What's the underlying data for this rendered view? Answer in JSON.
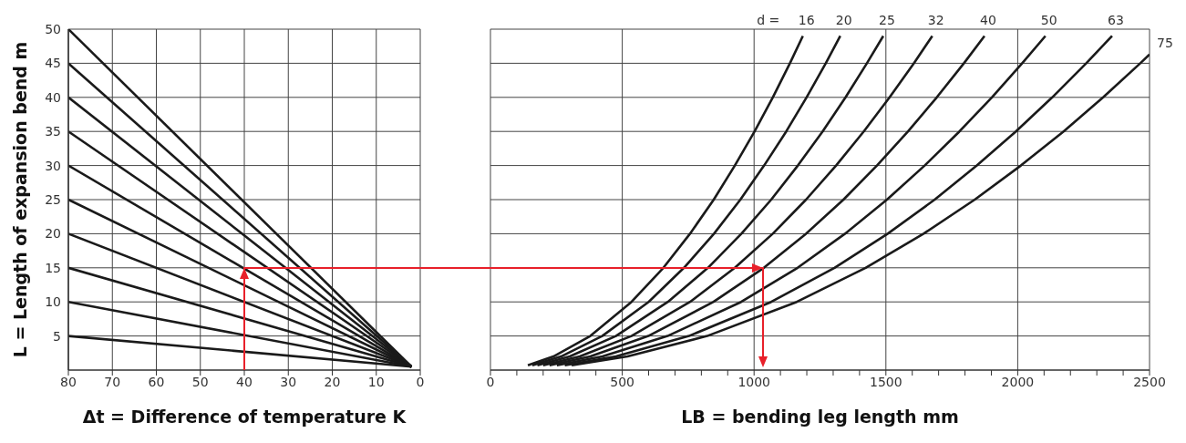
{
  "chart_data": [
    {
      "type": "line",
      "ylabel": "L = Length of expansion bend   m",
      "xlabel": "Δt = Difference of temperature K",
      "xlim": [
        80,
        0
      ],
      "xticks": [
        80,
        70,
        60,
        50,
        40,
        30,
        20,
        10,
        0
      ],
      "ylim": [
        0,
        50
      ],
      "yticks": [
        5,
        10,
        15,
        20,
        25,
        30,
        35,
        40,
        45,
        50
      ],
      "grid": true,
      "series": [
        {
          "color": "#1a1a1a",
          "x": [
            80,
            2
          ],
          "values": [
            5,
            0.5
          ]
        },
        {
          "color": "#1a1a1a",
          "x": [
            80,
            2
          ],
          "values": [
            10,
            0.5
          ]
        },
        {
          "color": "#1a1a1a",
          "x": [
            80,
            2
          ],
          "values": [
            15,
            0.5
          ]
        },
        {
          "color": "#1a1a1a",
          "x": [
            80,
            2
          ],
          "values": [
            20,
            0.5
          ]
        },
        {
          "color": "#1a1a1a",
          "x": [
            80,
            2
          ],
          "values": [
            25,
            0.5
          ]
        },
        {
          "color": "#1a1a1a",
          "x": [
            80,
            2
          ],
          "values": [
            30,
            0.5
          ]
        },
        {
          "color": "#1a1a1a",
          "x": [
            80,
            2
          ],
          "values": [
            35,
            0.5
          ]
        },
        {
          "color": "#1a1a1a",
          "x": [
            80,
            2
          ],
          "values": [
            40,
            0.5
          ]
        },
        {
          "color": "#1a1a1a",
          "x": [
            80,
            2
          ],
          "values": [
            45,
            0.5
          ]
        },
        {
          "color": "#1a1a1a",
          "x": [
            80,
            2
          ],
          "values": [
            50,
            0.5
          ]
        }
      ]
    },
    {
      "type": "line",
      "xlabel": "LB = bending leg length   mm",
      "legend_title": "d =",
      "xlim": [
        0,
        2500
      ],
      "xticks": [
        0,
        {
          "value": 100,
          "label": null
        },
        {
          "value": 200,
          "label": null
        },
        {
          "value": 300,
          "label": null
        },
        {
          "value": 400,
          "label": null
        },
        500,
        {
          "value": 600,
          "label": null
        },
        {
          "value": 700,
          "label": null
        },
        {
          "value": 800,
          "label": null
        },
        {
          "value": 900,
          "label": null
        },
        1000,
        {
          "value": 1100,
          "label": null
        },
        {
          "value": 1200,
          "label": null
        },
        {
          "value": 1300,
          "label": null
        },
        {
          "value": 1400,
          "label": null
        },
        1500,
        {
          "value": 1600,
          "label": null
        },
        {
          "value": 1700,
          "label": null
        },
        {
          "value": 1800,
          "label": null
        },
        {
          "value": 1900,
          "label": null
        },
        2000,
        {
          "value": 2100,
          "label": null
        },
        {
          "value": 2200,
          "label": null
        },
        {
          "value": 2300,
          "label": null
        },
        {
          "value": 2400,
          "label": null
        },
        2500
      ],
      "ylim": [
        0,
        50
      ],
      "yticks": [
        5,
        10,
        15,
        20,
        25,
        30,
        35,
        40,
        45,
        50
      ],
      "tick_labels": "x",
      "grid": true,
      "series": [
        {
          "name": "16",
          "color": "#1a1a1a",
          "x": [
            142,
            239,
            379,
            535,
            656,
            757,
            847,
            927,
            1002,
            1071,
            1136,
            1185
          ],
          "values": [
            0.7,
            2,
            5,
            10,
            15,
            20,
            25,
            30,
            35,
            40,
            45,
            49
          ]
        },
        {
          "name": "20",
          "color": "#1a1a1a",
          "x": [
            159,
            268,
            424,
            600,
            734,
            848,
            948,
            1038,
            1122,
            1199,
            1272,
            1327
          ],
          "values": [
            0.7,
            2,
            5,
            10,
            15,
            20,
            25,
            30,
            35,
            40,
            45,
            49
          ]
        },
        {
          "name": "25",
          "color": "#1a1a1a",
          "x": [
            178,
            301,
            476,
            673,
            825,
            952,
            1065,
            1166,
            1260,
            1347,
            1428,
            1490
          ],
          "values": [
            0.7,
            2,
            5,
            10,
            15,
            20,
            25,
            30,
            35,
            40,
            45,
            49
          ]
        },
        {
          "name": "32",
          "color": "#1a1a1a",
          "x": [
            200,
            339,
            535,
            757,
            927,
            1071,
            1197,
            1311,
            1416,
            1514,
            1606,
            1676
          ],
          "values": [
            0.7,
            2,
            5,
            10,
            15,
            20,
            25,
            30,
            35,
            40,
            45,
            49
          ]
        },
        {
          "name": "40",
          "color": "#1a1a1a",
          "x": [
            224,
            379,
            599,
            846,
            1037,
            1197,
            1339,
            1466,
            1584,
            1693,
            1796,
            1874
          ],
          "values": [
            0.7,
            2,
            5,
            10,
            15,
            20,
            25,
            30,
            35,
            40,
            45,
            49
          ]
        },
        {
          "name": "50",
          "color": "#1a1a1a",
          "x": [
            252,
            425,
            672,
            951,
            1165,
            1345,
            1504,
            1647,
            1779,
            1902,
            2017,
            2105
          ],
          "values": [
            0.7,
            2,
            5,
            10,
            15,
            20,
            25,
            30,
            35,
            40,
            45,
            49
          ]
        },
        {
          "name": "63",
          "color": "#1a1a1a",
          "x": [
            282,
            476,
            753,
            1065,
            1305,
            1507,
            1685,
            1845,
            1993,
            2131,
            2260,
            2358
          ],
          "values": [
            0.7,
            2,
            5,
            10,
            15,
            20,
            25,
            30,
            35,
            40,
            45,
            49
          ]
        },
        {
          "name": "75",
          "color": "#1a1a1a",
          "x": [
            308,
            520,
            822,
            1162,
            1423,
            1643,
            1837,
            2012,
            2174,
            2324,
            2465,
            2500
          ],
          "values": [
            0.7,
            2,
            5,
            10,
            15,
            20,
            25,
            30,
            35,
            40,
            45,
            46.3
          ]
        }
      ]
    }
  ]
}
